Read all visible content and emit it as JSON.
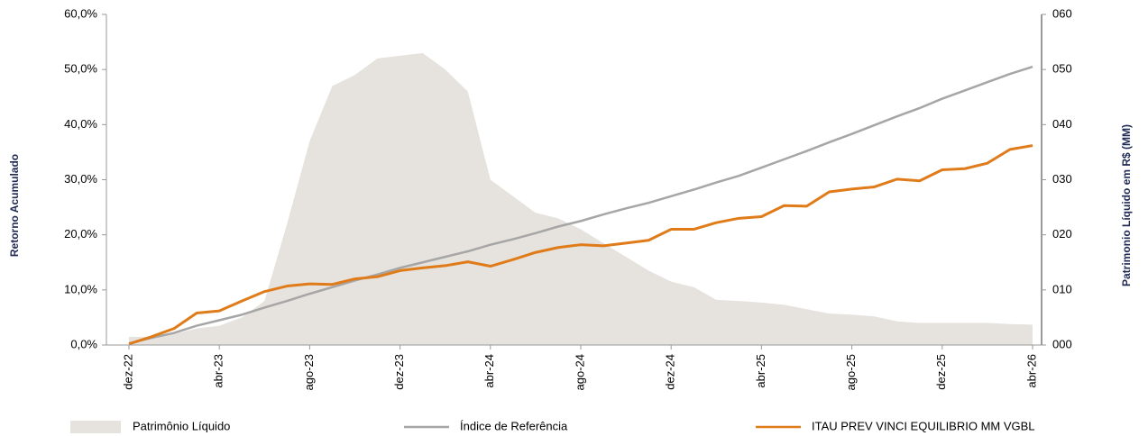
{
  "chart_data": {
    "type": "line",
    "ylabel": "Retorno Acumulado",
    "y2label": "Patrimonio Líquido em R$ (MM)",
    "categories": [
      "dez-22",
      null,
      null,
      null,
      "abr-23",
      null,
      null,
      null,
      "ago-23",
      null,
      null,
      null,
      "dez-23",
      null,
      null,
      null,
      "abr-24",
      null,
      null,
      null,
      "ago-24",
      null,
      null,
      null,
      "dez-24",
      null,
      null,
      null,
      "abr-25",
      null,
      null,
      null,
      "ago-25",
      null,
      null,
      null,
      "dez-25",
      null,
      null,
      null,
      "abr-26"
    ],
    "ylim": [
      0,
      60
    ],
    "yticks": [
      {
        "value": 0,
        "label": "0,0%"
      },
      {
        "value": 10,
        "label": "10,0%"
      },
      {
        "value": 20,
        "label": "20,0%"
      },
      {
        "value": 30,
        "label": "30,0%"
      },
      {
        "value": 40,
        "label": "40,0%"
      },
      {
        "value": 50,
        "label": "50,0%"
      },
      {
        "value": 60,
        "label": "60,0%"
      }
    ],
    "y2lim": [
      0,
      60
    ],
    "y2ticks": [
      {
        "value": 0,
        "label": "000"
      },
      {
        "value": 10,
        "label": "010"
      },
      {
        "value": 20,
        "label": "020"
      },
      {
        "value": 30,
        "label": "030"
      },
      {
        "value": 40,
        "label": "040"
      },
      {
        "value": 50,
        "label": "050"
      },
      {
        "value": 60,
        "label": "060"
      }
    ],
    "grid": false,
    "legend": "bottom",
    "series": [
      {
        "name": "Patrimônio Líquido",
        "type": "area",
        "axis": "y2",
        "color": "#e6e2dd",
        "values": [
          1.5,
          1.5,
          2,
          3,
          3.5,
          5,
          8,
          22,
          37,
          47,
          49,
          52,
          52.5,
          53,
          50,
          46,
          30,
          27,
          24,
          23,
          21,
          18.5,
          16,
          13.5,
          11.5,
          10.5,
          8.2,
          8,
          7.7,
          7.3,
          6.5,
          5.7,
          5.5,
          5.2,
          4.3,
          4,
          4,
          4,
          4,
          3.8,
          3.7
        ]
      },
      {
        "name": "Índice de Referência",
        "type": "line",
        "color": "#a6a6a6",
        "values": [
          0.3,
          1.3,
          2.2,
          3.5,
          4.5,
          5.5,
          6.8,
          8.0,
          9.3,
          10.5,
          11.7,
          12.8,
          14.0,
          15.0,
          16.0,
          17.0,
          18.2,
          19.2,
          20.3,
          21.5,
          22.5,
          23.7,
          24.8,
          25.8,
          27.0,
          28.2,
          29.5,
          30.7,
          32.2,
          33.7,
          35.2,
          36.8,
          38.3,
          39.9,
          41.5,
          43.0,
          44.7,
          46.2,
          47.7,
          49.2,
          50.5
        ]
      },
      {
        "name": "ITAU PREV VINCI EQUILIBRIO MM VGBL",
        "type": "line",
        "color": "#e07b1a",
        "values": [
          0.2,
          1.5,
          3.0,
          5.8,
          6.2,
          8.0,
          9.7,
          10.7,
          11.1,
          11.0,
          12.0,
          12.4,
          13.5,
          14.0,
          14.4,
          15.1,
          14.3,
          15.5,
          16.8,
          17.7,
          18.2,
          18.0,
          18.5,
          19.0,
          21.0,
          21.0,
          22.2,
          23.0,
          23.3,
          25.3,
          25.2,
          27.8,
          28.3,
          28.7,
          30.1,
          29.8,
          31.8,
          32.0,
          33.0,
          35.5,
          36.2
        ]
      }
    ]
  }
}
